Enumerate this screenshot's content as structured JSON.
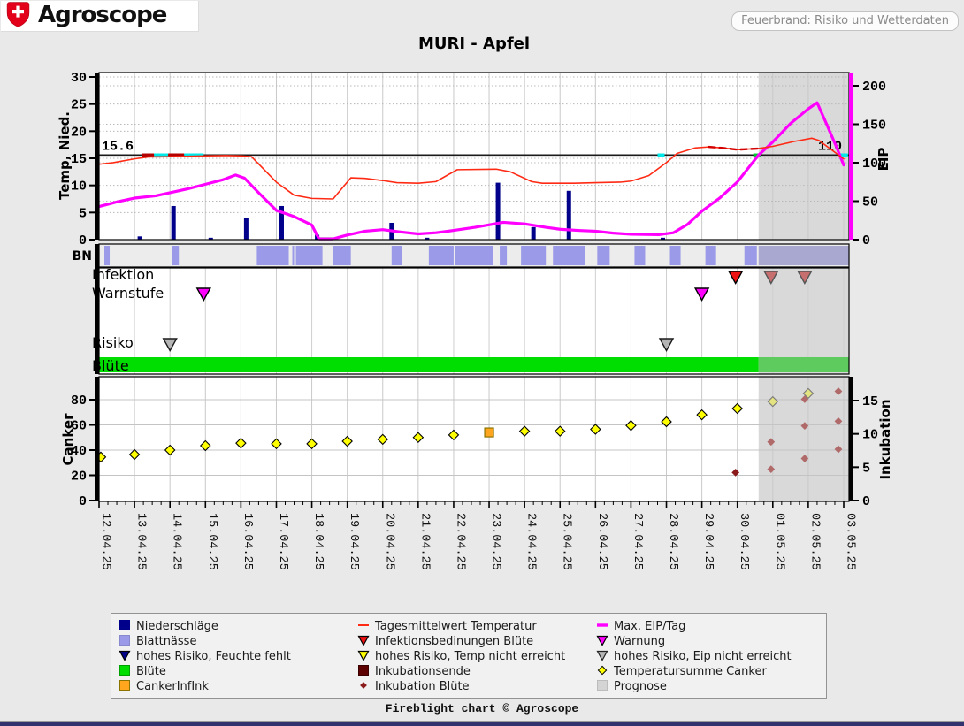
{
  "header": {
    "brand": "Agroscope",
    "badge": "Feuerbrand: Risiko und Wetterdaten"
  },
  "title": "MURI - Apfel",
  "footer": "Fireblight chart © Agroscope",
  "colors": {
    "page_bg": "#e9e9e9",
    "plot_bg": "#ffffff",
    "vgrid": "#c9c9c9",
    "hgrid_dot": "#b8b8b8",
    "precip": "#00008b",
    "temp_line": "#ff2a14",
    "eip_line": "#ff00ff",
    "right_axis": "#ff00ff",
    "threshold": "#1a1a1a",
    "bn_bar": "#9a9ae8",
    "bn_bar_forecast": "#a8a8d0",
    "bn_bg": "#ececec",
    "bloom": "#00dd00",
    "bloom_forecast": "#5ecb5e",
    "forecast_bg": "#d9d9d9",
    "canker_diamond": "#ffff00",
    "canker_diamond_forecast": "#e3e382",
    "incub_diamond": "#8b1a1a",
    "incub_diamond_forecast": "#b06a6a",
    "canker_ink": "#ffa51e",
    "tri_red": "#ee1111",
    "tri_red_forecast": "#c76f6f",
    "tri_magenta": "#ff00ff",
    "tri_gray": "#b5b5b5",
    "overlay_darkred": "#b30000",
    "overlay_cyan": "#00e8e8",
    "overlay_green": "#00cc33"
  },
  "chart_data": {
    "type": "composite-timeseries",
    "title": "MURI - Apfel",
    "dates": [
      "12.04.25",
      "13.04.25",
      "14.04.25",
      "15.04.25",
      "16.04.25",
      "17.04.25",
      "18.04.25",
      "19.04.25",
      "20.04.25",
      "21.04.25",
      "22.04.25",
      "23.04.25",
      "24.04.25",
      "25.04.25",
      "26.04.25",
      "27.04.25",
      "28.04.25",
      "29.04.25",
      "30.04.25",
      "01.05.25",
      "02.05.25",
      "03.05.25"
    ],
    "forecast_start_day": 18.6,
    "forecast_label": "Prognose",
    "top_panel": {
      "ylabel_left": "Temp, Nied.",
      "ylabel_right": "EIP",
      "yticks_left": [
        0,
        5,
        10,
        15,
        20,
        25,
        30
      ],
      "yticks_right": [
        0,
        50,
        100,
        150,
        200
      ],
      "ylim_left": [
        0,
        30.9
      ],
      "ylim_right": [
        0,
        217.8
      ],
      "threshold": {
        "temp": 15.6,
        "eip": 110,
        "label_left": "15.6",
        "label_right": "110"
      },
      "temperature_series": {
        "name": "Tagesmittelwert Temperatur",
        "points": [
          [
            0,
            13.9
          ],
          [
            0.4,
            14.2
          ],
          [
            1,
            14.9
          ],
          [
            1.4,
            15.25
          ],
          [
            2,
            15.3
          ],
          [
            3,
            15.45
          ],
          [
            3.6,
            15.5
          ],
          [
            4,
            15.45
          ],
          [
            4.3,
            15.3
          ],
          [
            5,
            10.6
          ],
          [
            5.5,
            8.2
          ],
          [
            6,
            7.6
          ],
          [
            6.6,
            7.5
          ],
          [
            7.1,
            11.4
          ],
          [
            7.5,
            11.3
          ],
          [
            8,
            10.9
          ],
          [
            8.4,
            10.5
          ],
          [
            9,
            10.4
          ],
          [
            9.5,
            10.7
          ],
          [
            10.1,
            12.9
          ],
          [
            11.2,
            13.0
          ],
          [
            11.6,
            12.5
          ],
          [
            12.2,
            10.7
          ],
          [
            12.5,
            10.4
          ],
          [
            13.4,
            10.4
          ],
          [
            14,
            10.5
          ],
          [
            14.7,
            10.6
          ],
          [
            15,
            10.8
          ],
          [
            15.5,
            11.8
          ],
          [
            16,
            14.2
          ],
          [
            16.3,
            15.9
          ],
          [
            16.8,
            16.9
          ],
          [
            17.2,
            17.1
          ],
          [
            17.6,
            16.9
          ],
          [
            18,
            16.6
          ],
          [
            18.6,
            16.8
          ],
          [
            19,
            17.2
          ],
          [
            19.6,
            18.1
          ],
          [
            20.1,
            18.7
          ],
          [
            20.3,
            18.3
          ],
          [
            21,
            14.9
          ]
        ],
        "dashed_overlay_range": [
          16.9,
          18.65
        ]
      },
      "eip_series": {
        "name": "Max. EIP/Tag",
        "points": [
          [
            0,
            43
          ],
          [
            0.5,
            49
          ],
          [
            1,
            54
          ],
          [
            1.6,
            57
          ],
          [
            2,
            61
          ],
          [
            2.5,
            66
          ],
          [
            3,
            72
          ],
          [
            3.5,
            78
          ],
          [
            3.85,
            84
          ],
          [
            4.1,
            80
          ],
          [
            4.5,
            61
          ],
          [
            5,
            38
          ],
          [
            5.5,
            30
          ],
          [
            6,
            19
          ],
          [
            6.2,
            1
          ],
          [
            6.6,
            1
          ],
          [
            7,
            6
          ],
          [
            7.5,
            11
          ],
          [
            8,
            13
          ],
          [
            8.5,
            10
          ],
          [
            9,
            7.5
          ],
          [
            9.5,
            9
          ],
          [
            10,
            12
          ],
          [
            10.6,
            16
          ],
          [
            11.1,
            20
          ],
          [
            11.4,
            22.5
          ],
          [
            12,
            20.5
          ],
          [
            12.6,
            16
          ],
          [
            13,
            13.5
          ],
          [
            13.5,
            12
          ],
          [
            14,
            11
          ],
          [
            14.5,
            8.5
          ],
          [
            15,
            7
          ],
          [
            15.8,
            6.5
          ],
          [
            16.2,
            9
          ],
          [
            16.6,
            20
          ],
          [
            17,
            37
          ],
          [
            17.5,
            54
          ],
          [
            18,
            75
          ],
          [
            18.6,
            110
          ],
          [
            19,
            127
          ],
          [
            19.5,
            151
          ],
          [
            20,
            170
          ],
          [
            20.25,
            178
          ],
          [
            20.5,
            152
          ],
          [
            20.8,
            120
          ],
          [
            21,
            97
          ]
        ]
      },
      "precipitation_bars": {
        "name": "Niederschläge",
        "points": [
          [
            1.15,
            0.6
          ],
          [
            2.1,
            6.2
          ],
          [
            3.15,
            0.35
          ],
          [
            4.15,
            4.0
          ],
          [
            5.15,
            6.2
          ],
          [
            6.15,
            0.9
          ],
          [
            8.25,
            3.1
          ],
          [
            9.25,
            0.35
          ],
          [
            11.25,
            10.5
          ],
          [
            12.25,
            2.3
          ],
          [
            13.25,
            9.0
          ],
          [
            15.9,
            0.35
          ]
        ]
      },
      "threshold_overlays": [
        {
          "color": "darkred",
          "from": 1.2,
          "to": 1.55
        },
        {
          "color": "cyan",
          "from": 1.55,
          "to": 1.95
        },
        {
          "color": "darkred",
          "from": 1.95,
          "to": 2.4
        },
        {
          "color": "cyan",
          "from": 2.4,
          "to": 2.95
        },
        {
          "color": "cyan",
          "from": 15.75,
          "to": 15.95
        },
        {
          "color": "green",
          "from": 18.45,
          "to": 18.68
        },
        {
          "color": "cyan",
          "from": 20.9,
          "to": 21.12
        }
      ],
      "zero_overlays": [
        {
          "color": "green",
          "from": 6.2,
          "to": 6.6
        }
      ]
    },
    "bands": {
      "bn_label": "BN",
      "row_labels": [
        "Infektion",
        "Warnstufe",
        "Risiko",
        "Blüte"
      ],
      "bn_segments": [
        [
          0.15,
          0.3
        ],
        [
          2.05,
          2.25
        ],
        [
          4.45,
          5.35
        ],
        [
          5.45,
          5.5
        ],
        [
          5.55,
          6.3
        ],
        [
          6.6,
          7.1
        ],
        [
          8.25,
          8.55
        ],
        [
          9.3,
          10.0
        ],
        [
          10.05,
          11.1
        ],
        [
          11.3,
          11.5
        ],
        [
          11.9,
          12.6
        ],
        [
          12.8,
          13.7
        ],
        [
          14.05,
          14.4
        ],
        [
          15.1,
          15.4
        ],
        [
          16.1,
          16.4
        ],
        [
          17.1,
          17.4
        ],
        [
          18.2,
          18.55
        ]
      ],
      "bn_forecast_segment": [
        18.6,
        21.25
      ],
      "infektion_markers": {
        "solid": [
          17.95
        ],
        "forecast": [
          18.95,
          19.9
        ]
      },
      "warnstufe_markers": [
        2.95,
        17.0
      ],
      "risiko_markers": [
        2.0,
        16.0
      ],
      "bluete_full_range": [
        0,
        21.25
      ]
    },
    "bottom_panel": {
      "ylabel_left": "Canker",
      "ylabel_right": "Inkubation",
      "yticks_left": [
        0,
        20,
        40,
        60,
        80
      ],
      "yticks_right": [
        0,
        5,
        10,
        15
      ],
      "ylim_left": [
        0,
        98.9
      ],
      "ylim_right": [
        0,
        18.7
      ],
      "canker_series": {
        "name": "Temperatursumme Canker",
        "points": [
          [
            0.05,
            34.5
          ],
          [
            1,
            36.5
          ],
          [
            2,
            40
          ],
          [
            3,
            43.5
          ],
          [
            4,
            45.5
          ],
          [
            5,
            45
          ],
          [
            6,
            45
          ],
          [
            7,
            47
          ],
          [
            8,
            48.5
          ],
          [
            9,
            50
          ],
          [
            10,
            52
          ],
          [
            12,
            55
          ],
          [
            13,
            55
          ],
          [
            14,
            56.5
          ],
          [
            15,
            59.5
          ],
          [
            16,
            62.5
          ],
          [
            17,
            68
          ],
          [
            18,
            73
          ]
        ],
        "forecast_points": [
          [
            19,
            78.5
          ],
          [
            20,
            85
          ]
        ]
      },
      "canker_inf_ink": {
        "name": "CankerInfInk",
        "points": [
          [
            11,
            54
          ]
        ]
      },
      "inkubation_bluete": {
        "name": "Inkubation Blüte",
        "solid": [
          [
            17.95,
            4.2
          ]
        ],
        "forecast": [
          [
            18.95,
            4.7
          ],
          [
            18.95,
            8.8
          ],
          [
            19.9,
            6.3
          ],
          [
            19.9,
            11.2
          ],
          [
            19.9,
            15.2
          ],
          [
            20.85,
            7.7
          ],
          [
            20.85,
            11.9
          ],
          [
            20.85,
            16.4
          ]
        ]
      }
    }
  },
  "legend": {
    "columns": [
      [
        {
          "icon": "square-navy",
          "label": "Niederschläge"
        },
        {
          "icon": "square-periwinkle",
          "label": "Blattnässe"
        },
        {
          "icon": "triangle-navy",
          "label": "hohes Risiko, Feuchte fehlt"
        },
        {
          "icon": "square-green",
          "label": "Blüte"
        },
        {
          "icon": "square-orange",
          "label": "CankerInfInk"
        }
      ],
      [
        {
          "icon": "dash-red",
          "label": "Tagesmittelwert Temperatur"
        },
        {
          "icon": "triangle-red",
          "label": "Infektionsbedinungen Blüte"
        },
        {
          "icon": "triangle-yellow",
          "label": "hohes Risiko, Temp nicht erreicht"
        },
        {
          "icon": "square-maroon",
          "label": "Inkubationsende"
        },
        {
          "icon": "diamond-darkred",
          "label": "Inkubation Blüte"
        }
      ],
      [
        {
          "icon": "dash-magenta",
          "label": "Max. EIP/Tag"
        },
        {
          "icon": "triangle-magenta",
          "label": "Warnung"
        },
        {
          "icon": "triangle-gray",
          "label": "hohes Risiko, Eip nicht erreicht"
        },
        {
          "icon": "diamond-yellow",
          "label": "Temperatursumme Canker"
        },
        {
          "icon": "square-lightgray",
          "label": "Prognose"
        }
      ]
    ]
  }
}
